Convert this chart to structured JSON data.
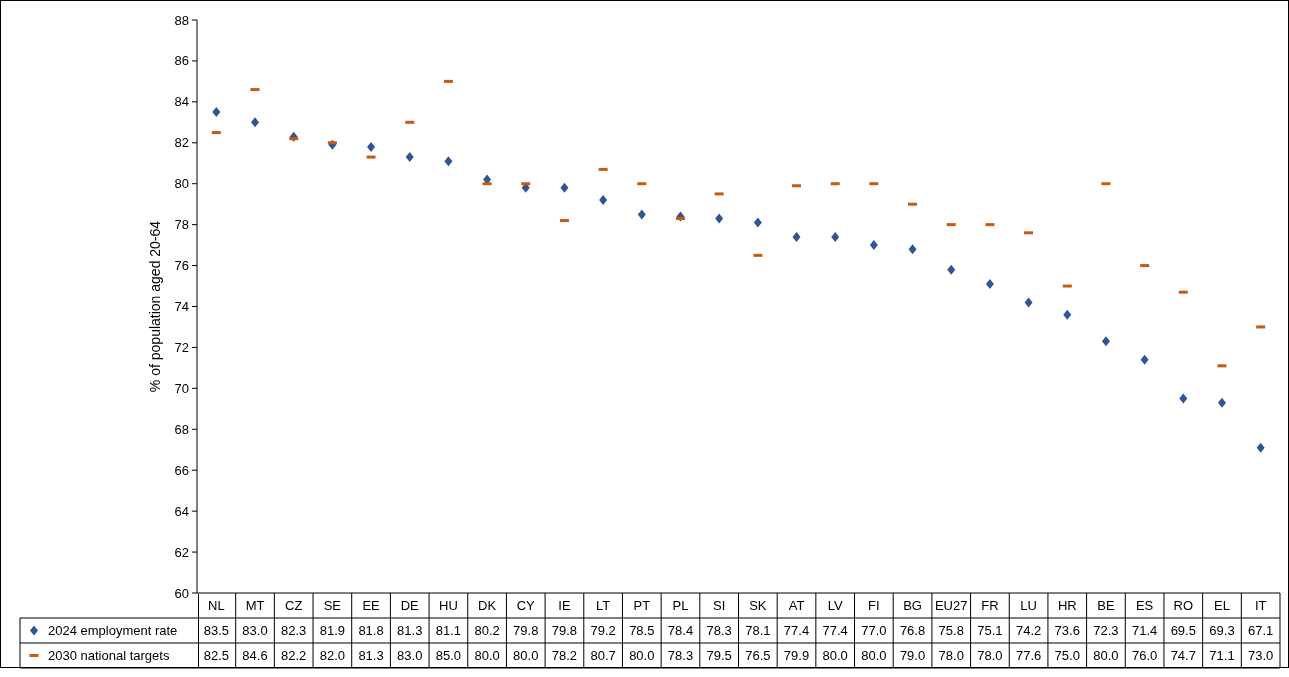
{
  "chart_data": {
    "type": "scatter",
    "ylabel": "% of population aged 20-64",
    "categories": [
      "NL",
      "MT",
      "CZ",
      "SE",
      "EE",
      "DE",
      "HU",
      "DK",
      "CY",
      "IE",
      "LT",
      "PT",
      "PL",
      "SI",
      "SK",
      "AT",
      "LV",
      "FI",
      "BG",
      "EU27",
      "FR",
      "LU",
      "HR",
      "BE",
      "ES",
      "RO",
      "EL",
      "IT"
    ],
    "series": [
      {
        "name": "2024 employment rate",
        "color": "#2f5597",
        "marker": "diamond",
        "values": [
          83.5,
          83.0,
          82.3,
          81.9,
          81.8,
          81.3,
          81.1,
          80.2,
          79.8,
          79.8,
          79.2,
          78.5,
          78.4,
          78.3,
          78.1,
          77.4,
          77.4,
          77.0,
          76.8,
          75.8,
          75.1,
          74.2,
          73.6,
          72.3,
          71.4,
          69.5,
          69.3,
          67.1
        ],
        "value_labels": [
          "83.5",
          "83.0",
          "82.3",
          "81.9",
          "81.8",
          "81.3",
          "81.1",
          "80.2",
          "79.8",
          "79.8",
          "79.2",
          "78.5",
          "78.4",
          "78.3",
          "78.1",
          "77.4",
          "77.4",
          "77.0",
          "76.8",
          "75.8",
          "75.1",
          "74.2",
          "73.6",
          "72.3",
          "71.4",
          "69.5",
          "69.3",
          "67.1"
        ]
      },
      {
        "name": "2030 national targets",
        "color": "#c55a11",
        "values": [
          82.5,
          84.6,
          82.2,
          82.0,
          81.3,
          83.0,
          85.0,
          80.0,
          80.0,
          78.2,
          80.7,
          80.0,
          78.3,
          79.5,
          76.5,
          79.9,
          80.0,
          80.0,
          79.0,
          78.0,
          78.0,
          77.6,
          75.0,
          80.0,
          76.0,
          74.7,
          71.1,
          73.0
        ],
        "value_labels": [
          "82.5",
          "84.6",
          "82.2",
          "82.0",
          "81.3",
          "83.0",
          "85.0",
          "80.0",
          "80.0",
          "78.2",
          "80.7",
          "80.0",
          "78.3",
          "79.5",
          "76.5",
          "79.9",
          "80.0",
          "80.0",
          "79.0",
          "78.0",
          "78.0",
          "77.6",
          "75.0",
          "80.0",
          "76.0",
          "74.7",
          "71.1",
          "73.0"
        ]
      }
    ],
    "ylim": [
      60,
      88
    ],
    "yticks": [
      60,
      62,
      64,
      66,
      68,
      70,
      72,
      74,
      76,
      78,
      80,
      82,
      84,
      86,
      88
    ],
    "grid": false,
    "legend": "bottom"
  }
}
